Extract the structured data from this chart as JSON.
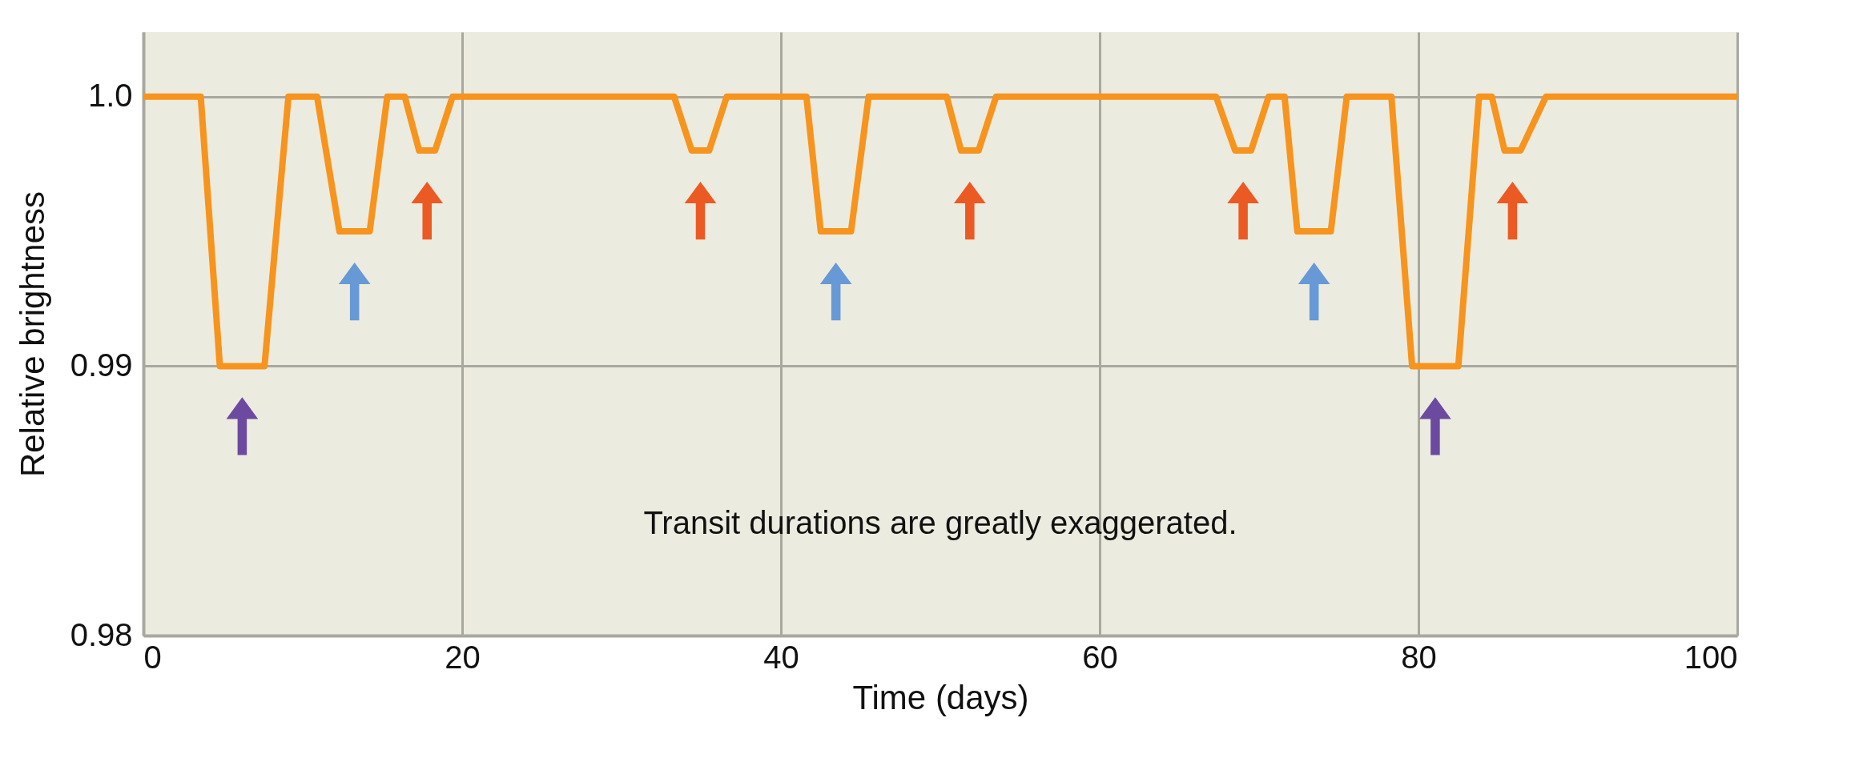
{
  "chart_data": {
    "type": "line",
    "xlabel": "Time (days)",
    "ylabel": "Relative brightness",
    "x": [
      0,
      3.6,
      4.8,
      7.6,
      9.1,
      10.9,
      12.3,
      14.2,
      15.3,
      16.4,
      17.3,
      18.3,
      19.4,
      33.3,
      34.4,
      35.5,
      36.6,
      41.6,
      42.5,
      44.4,
      45.5,
      50.4,
      51.3,
      52.4,
      53.5,
      67.3,
      68.5,
      69.5,
      70.6,
      71.6,
      72.4,
      74.5,
      75.5,
      78.3,
      79.6,
      82.5,
      83.8,
      84.6,
      85.4,
      86.4,
      88.0,
      100
    ],
    "series": [
      {
        "color": "#f7941d",
        "values": [
          1.0,
          1.0,
          0.99,
          0.99,
          1.0,
          1.0,
          0.995,
          0.995,
          1.0,
          1.0,
          0.998,
          0.998,
          1.0,
          1.0,
          0.998,
          0.998,
          1.0,
          1.0,
          0.995,
          0.995,
          1.0,
          1.0,
          0.998,
          0.998,
          1.0,
          1.0,
          0.998,
          0.998,
          1.0,
          1.0,
          0.995,
          0.995,
          1.0,
          1.0,
          0.99,
          0.99,
          1.0,
          1.0,
          0.998,
          0.998,
          1.0,
          1.0
        ]
      }
    ],
    "xlim": [
      0,
      100
    ],
    "xticks": [
      0,
      20,
      40,
      60,
      80,
      100
    ],
    "ylim": [
      0.98,
      1.0024
    ],
    "yticks": [
      0.98,
      0.99,
      {
        "value": 1.0,
        "label": "1.0"
      }
    ],
    "grid": true,
    "line_style": "solid",
    "annotations": [
      "Transit durations are greatly exaggerated."
    ]
  }
}
